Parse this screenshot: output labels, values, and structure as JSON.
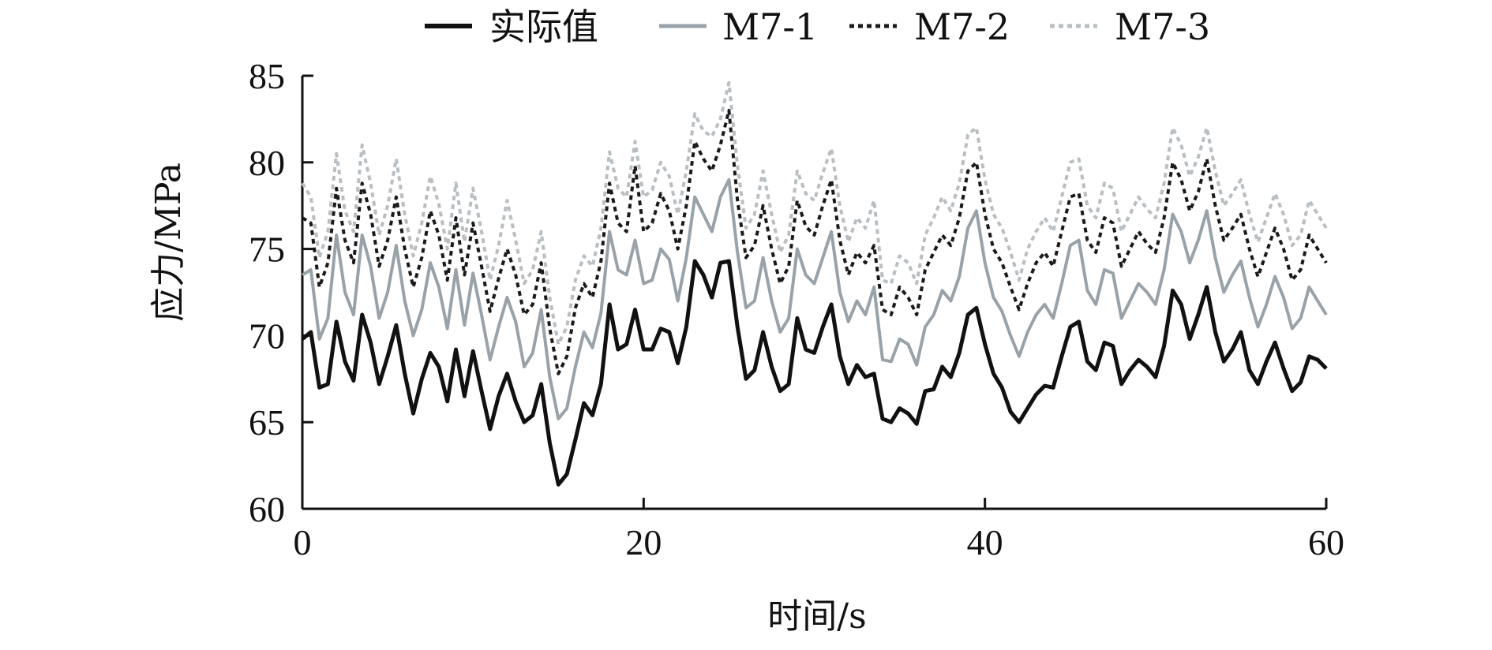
{
  "chart_data": {
    "type": "line",
    "title": "",
    "xlabel": "时间/s",
    "ylabel": "应力/MPa",
    "xlim": [
      0,
      60
    ],
    "ylim": [
      60,
      85
    ],
    "xticks": [
      0,
      20,
      40,
      60
    ],
    "yticks": [
      60,
      65,
      70,
      75,
      80,
      85
    ],
    "x_tick_labels": [
      "0",
      "20",
      "40",
      "60"
    ],
    "y_tick_labels": [
      "60",
      "65",
      "70",
      "75",
      "80",
      "85"
    ],
    "grid": false,
    "legend_position": "top",
    "x": [
      0.0,
      0.5,
      1.0,
      1.5,
      2.0,
      2.5,
      3.0,
      3.5,
      4.0,
      4.5,
      5.0,
      5.5,
      6.0,
      6.5,
      7.0,
      7.5,
      8.0,
      8.5,
      9.0,
      9.5,
      10.0,
      10.5,
      11.0,
      11.5,
      12.0,
      12.5,
      13.0,
      13.5,
      14.0,
      14.5,
      15.0,
      15.5,
      16.0,
      16.5,
      17.0,
      17.5,
      18.0,
      18.5,
      19.0,
      19.5,
      20.0,
      20.5,
      21.0,
      21.5,
      22.0,
      22.5,
      23.0,
      23.5,
      24.0,
      24.5,
      25.0,
      25.5,
      26.0,
      26.5,
      27.0,
      27.5,
      28.0,
      28.5,
      29.0,
      29.5,
      30.0,
      30.5,
      31.0,
      31.5,
      32.0,
      32.5,
      33.0,
      33.5,
      34.0,
      34.5,
      35.0,
      35.5,
      36.0,
      36.5,
      37.0,
      37.5,
      38.0,
      38.5,
      39.0,
      39.5,
      40.0,
      40.5,
      41.0,
      41.5,
      42.0,
      42.5,
      43.0,
      43.5,
      44.0,
      44.5,
      45.0,
      45.5,
      46.0,
      46.5,
      47.0,
      47.5,
      48.0,
      48.5,
      49.0,
      49.5,
      50.0,
      50.5,
      51.0,
      51.5,
      52.0,
      52.5,
      53.0,
      53.5,
      54.0,
      54.5,
      55.0,
      55.5,
      56.0,
      56.5,
      57.0,
      57.5,
      58.0,
      58.5,
      59.0,
      59.5,
      60.0
    ],
    "series": [
      {
        "name": "实际值",
        "color": "#111111",
        "dash": "solid",
        "width": 5,
        "values": [
          69.8,
          70.2,
          67.0,
          67.2,
          70.8,
          68.5,
          67.4,
          71.2,
          69.6,
          67.2,
          68.8,
          70.6,
          67.8,
          65.5,
          67.5,
          69.0,
          68.2,
          66.2,
          69.2,
          66.5,
          69.1,
          66.8,
          64.6,
          66.5,
          67.8,
          66.2,
          65.0,
          65.4,
          67.2,
          63.8,
          61.4,
          62.0,
          64.0,
          66.1,
          65.4,
          67.2,
          71.8,
          69.2,
          69.5,
          71.5,
          69.2,
          69.2,
          70.4,
          70.2,
          68.4,
          70.5,
          74.3,
          73.5,
          72.2,
          74.2,
          74.3,
          70.5,
          67.5,
          68.0,
          70.2,
          68.2,
          66.8,
          67.2,
          71.0,
          69.2,
          69.0,
          70.5,
          71.8,
          68.8,
          67.2,
          68.3,
          67.6,
          67.8,
          65.2,
          65.0,
          65.8,
          65.5,
          64.9,
          66.8,
          66.9,
          68.2,
          67.6,
          69.0,
          71.2,
          71.6,
          69.5,
          67.8,
          67.0,
          65.6,
          65.0,
          65.8,
          66.6,
          67.1,
          67.0,
          68.8,
          70.5,
          70.8,
          68.5,
          68.0,
          69.6,
          69.4,
          67.2,
          68.0,
          68.6,
          68.2,
          67.6,
          69.4,
          72.6,
          71.8,
          69.8,
          71.2,
          72.8,
          70.2,
          68.5,
          69.2,
          70.2,
          68.0,
          67.2,
          68.5,
          69.6,
          68.1,
          66.8,
          67.3,
          68.8,
          68.6,
          68.1
        ]
      },
      {
        "name": "M7-1",
        "color": "#98a2a8",
        "dash": "solid",
        "width": 4,
        "values": [
          73.5,
          73.8,
          69.8,
          71.0,
          75.8,
          72.5,
          71.2,
          75.8,
          74.0,
          71.0,
          72.5,
          75.2,
          72.0,
          70.0,
          71.5,
          74.2,
          72.8,
          70.4,
          73.8,
          70.6,
          73.6,
          71.2,
          68.6,
          70.5,
          72.2,
          70.8,
          68.2,
          69.0,
          71.5,
          67.6,
          65.2,
          65.8,
          68.2,
          70.2,
          69.3,
          71.3,
          76.0,
          73.8,
          73.5,
          75.5,
          73.0,
          73.2,
          75.0,
          74.4,
          72.0,
          74.5,
          78.0,
          77.0,
          76.0,
          78.0,
          79.0,
          74.8,
          71.6,
          72.0,
          74.5,
          72.0,
          70.2,
          71.0,
          75.0,
          73.5,
          73.0,
          74.5,
          76.0,
          72.5,
          70.8,
          72.0,
          71.2,
          72.8,
          68.6,
          68.5,
          69.8,
          69.5,
          68.3,
          70.5,
          71.2,
          72.6,
          72.0,
          73.4,
          76.2,
          77.2,
          74.2,
          72.2,
          71.4,
          70.0,
          68.8,
          70.2,
          71.2,
          71.8,
          71.0,
          73.0,
          75.2,
          75.5,
          72.6,
          71.8,
          73.8,
          73.6,
          71.0,
          72.0,
          73.0,
          72.5,
          71.8,
          73.8,
          77.0,
          76.0,
          74.2,
          75.5,
          77.2,
          74.5,
          72.5,
          73.5,
          74.3,
          72.2,
          70.5,
          71.8,
          73.4,
          72.2,
          70.4,
          71.0,
          72.8,
          72.0,
          71.2
        ]
      },
      {
        "name": "M7-2",
        "color": "#1a1a1a",
        "dash": "6,5",
        "width": 4,
        "values": [
          76.8,
          76.5,
          72.8,
          74.2,
          78.5,
          75.5,
          74.2,
          78.8,
          77.0,
          74.0,
          75.5,
          78.0,
          75.0,
          72.8,
          74.5,
          77.2,
          75.8,
          73.2,
          76.8,
          73.5,
          76.5,
          74.0,
          71.4,
          73.3,
          75.0,
          73.5,
          71.2,
          71.8,
          74.2,
          70.4,
          67.8,
          68.8,
          71.6,
          73.0,
          72.2,
          74.3,
          78.8,
          76.5,
          76.0,
          79.8,
          76.0,
          76.5,
          78.2,
          77.2,
          75.0,
          77.5,
          81.2,
          80.2,
          79.5,
          81.0,
          83.0,
          77.8,
          74.5,
          75.2,
          77.5,
          75.0,
          73.0,
          74.0,
          77.8,
          76.3,
          75.8,
          77.5,
          79.0,
          75.5,
          73.5,
          74.8,
          74.2,
          75.2,
          71.5,
          71.2,
          72.8,
          72.2,
          71.2,
          73.8,
          74.8,
          75.8,
          75.2,
          76.8,
          79.5,
          80.0,
          77.0,
          75.0,
          74.2,
          72.8,
          71.5,
          73.0,
          74.2,
          74.8,
          74.0,
          76.0,
          78.0,
          78.2,
          75.5,
          74.8,
          76.8,
          76.5,
          74.0,
          75.0,
          76.0,
          75.3,
          74.8,
          76.8,
          80.0,
          79.0,
          77.2,
          78.3,
          80.2,
          77.5,
          75.5,
          76.2,
          77.0,
          75.0,
          73.4,
          74.8,
          76.2,
          75.0,
          73.2,
          73.8,
          75.8,
          75.0,
          74.2
        ]
      },
      {
        "name": "M7-3",
        "color": "#b8bec2",
        "dash": "6,5",
        "width": 4,
        "values": [
          78.8,
          78.0,
          74.5,
          76.0,
          80.5,
          77.2,
          76.0,
          81.0,
          78.8,
          75.8,
          77.5,
          80.2,
          77.0,
          74.6,
          76.5,
          79.2,
          77.6,
          75.0,
          78.8,
          75.4,
          78.5,
          76.0,
          73.2,
          75.2,
          77.8,
          75.5,
          73.0,
          73.8,
          76.0,
          72.2,
          69.5,
          70.5,
          73.2,
          74.6,
          74.0,
          76.2,
          80.6,
          78.5,
          78.0,
          81.2,
          78.0,
          78.4,
          80.0,
          79.2,
          77.0,
          79.5,
          82.8,
          81.8,
          81.5,
          82.5,
          84.6,
          79.8,
          76.2,
          77.0,
          79.5,
          77.0,
          74.8,
          75.8,
          79.5,
          78.2,
          77.8,
          79.4,
          80.8,
          77.5,
          75.4,
          76.8,
          76.2,
          77.8,
          73.2,
          73.0,
          74.6,
          74.2,
          73.0,
          75.8,
          76.8,
          78.0,
          77.2,
          78.8,
          81.6,
          82.0,
          79.0,
          77.0,
          76.2,
          74.8,
          73.2,
          75.0,
          76.0,
          76.8,
          76.0,
          78.0,
          80.0,
          80.2,
          77.5,
          76.8,
          78.8,
          78.5,
          76.0,
          77.0,
          78.0,
          77.3,
          76.8,
          78.8,
          82.0,
          81.0,
          79.2,
          80.3,
          82.0,
          79.5,
          77.5,
          78.2,
          79.0,
          77.0,
          75.4,
          76.8,
          78.2,
          77.0,
          75.2,
          75.8,
          77.8,
          77.0,
          76.2
        ]
      }
    ]
  }
}
